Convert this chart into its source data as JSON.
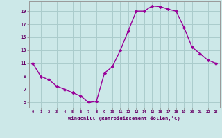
{
  "x": [
    0,
    1,
    2,
    3,
    4,
    5,
    6,
    7,
    8,
    9,
    10,
    11,
    12,
    13,
    14,
    15,
    16,
    17,
    18,
    19,
    20,
    21,
    22,
    23
  ],
  "y": [
    11.0,
    9.0,
    8.5,
    7.5,
    7.0,
    6.5,
    6.0,
    5.0,
    5.2,
    9.5,
    10.5,
    13.0,
    16.0,
    19.0,
    19.0,
    19.8,
    19.7,
    19.3,
    19.0,
    16.5,
    13.5,
    12.5,
    11.5,
    11.0
  ],
  "line_color": "#990099",
  "marker_color": "#990099",
  "bg_color": "#cce8e8",
  "grid_color": "#aacccc",
  "xlabel": "Windchill (Refroidissement éolien,°C)",
  "ylabel_ticks": [
    5,
    7,
    9,
    11,
    13,
    15,
    17,
    19
  ],
  "ylim": [
    4.2,
    20.5
  ],
  "xlim": [
    -0.5,
    23.5
  ],
  "tick_color": "#660066",
  "label_color": "#660066",
  "font_family": "monospace"
}
